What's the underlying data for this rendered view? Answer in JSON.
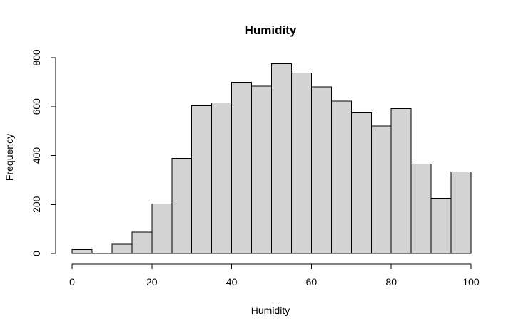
{
  "chart_data": {
    "type": "bar",
    "subtype": "histogram",
    "title": "Humidity",
    "xlabel": "Humidity",
    "ylabel": "Frequency",
    "bin_edges": [
      0,
      5,
      10,
      15,
      20,
      25,
      30,
      35,
      40,
      45,
      50,
      55,
      60,
      65,
      70,
      75,
      80,
      85,
      90,
      95,
      100
    ],
    "values": [
      16,
      1,
      38,
      87,
      202,
      389,
      603,
      615,
      699,
      683,
      775,
      737,
      681,
      623,
      575,
      521,
      592,
      365,
      226,
      333
    ],
    "xlim": [
      0,
      100
    ],
    "ylim": [
      0,
      800
    ],
    "x_ticks": [
      0,
      20,
      40,
      60,
      80,
      100
    ],
    "y_ticks": [
      0,
      200,
      400,
      600,
      800
    ],
    "bar_color": "#d3d3d3",
    "edge_color": "#000000",
    "grid": false
  }
}
